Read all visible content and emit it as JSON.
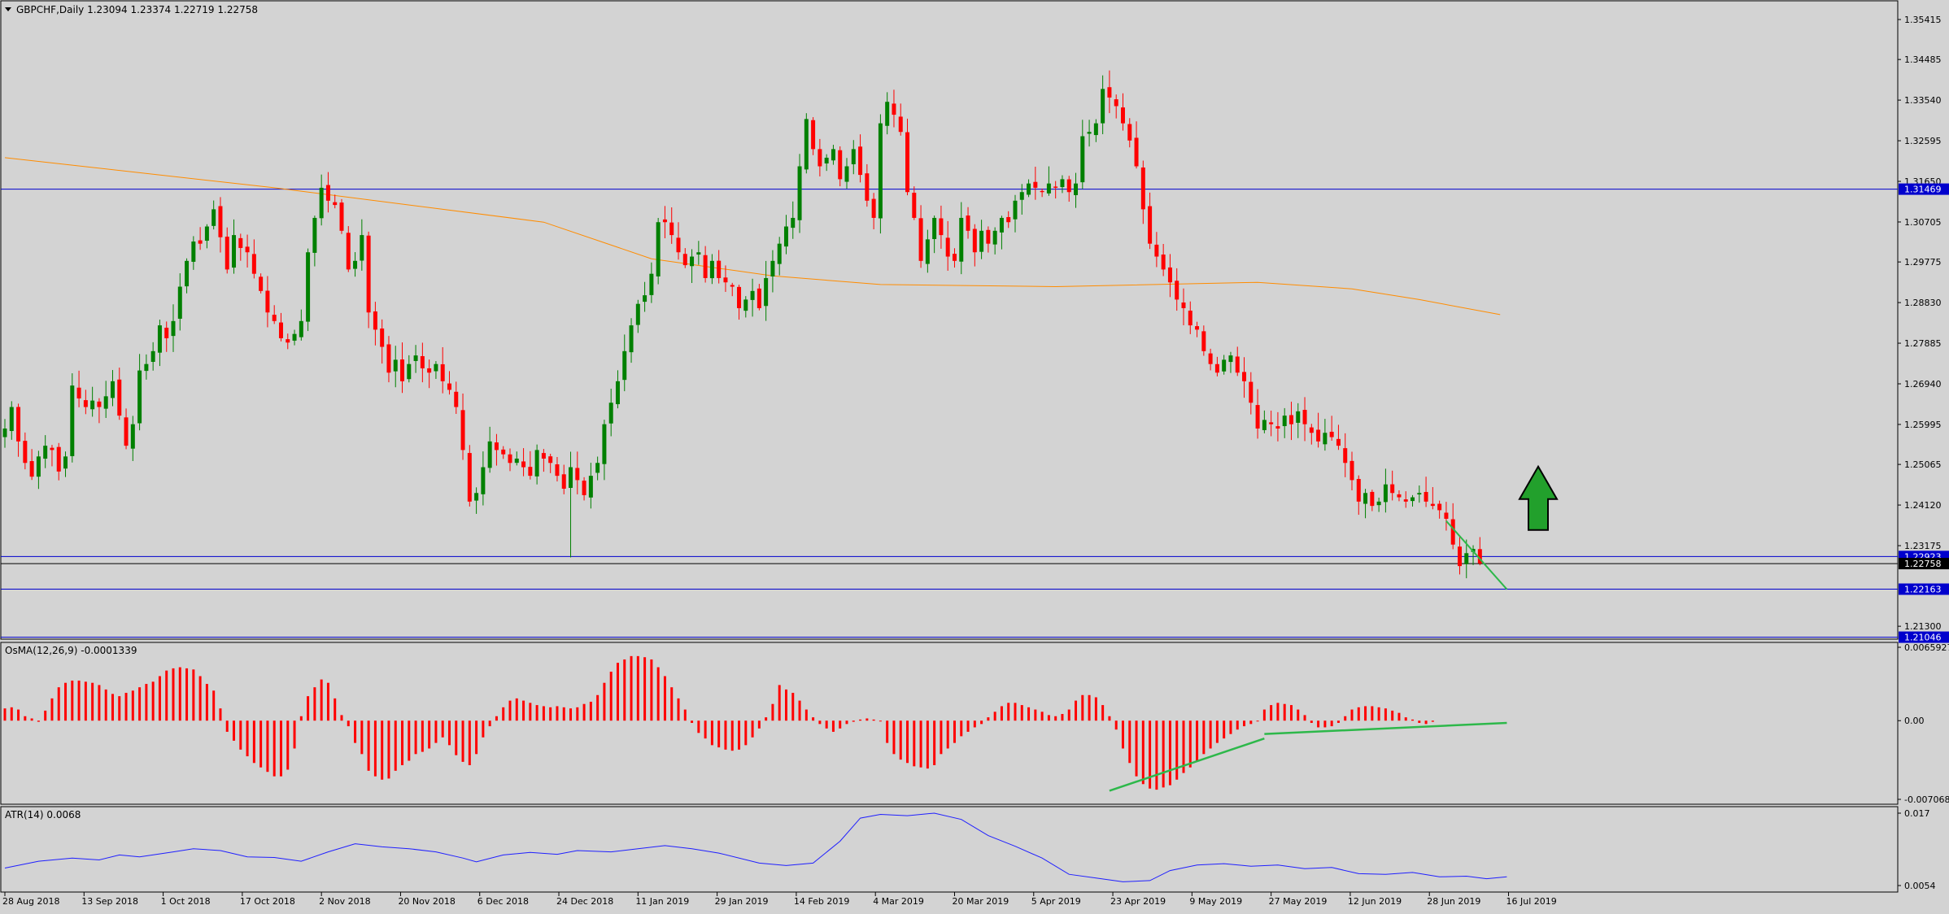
{
  "header": {
    "symbol_line": "GBPCHF,Daily  1.23094 1.23374 1.22719 1.22758",
    "osma_label": "OsMA(12,26,9) -0.0001339",
    "atr_label": "ATR(14) 0.0068"
  },
  "colors": {
    "background": "#d3d3d3",
    "grid_frame": "#000000",
    "bull_candle": "#008000",
    "bear_candle": "#ff0000",
    "ma_line": "#ff8c00",
    "hline": "#0000cd",
    "price_label_bg": "#0000cd",
    "current_price_line": "#000000",
    "trendline": "#2db84a",
    "osma_bars": "#ff0000",
    "atr_line": "#1f1fff",
    "arrow_fill": "#22a02c"
  },
  "chart_data": [
    {
      "type": "candlestick",
      "title": "GBPCHF,Daily",
      "ohlc_last": {
        "open": 1.23094,
        "high": 1.23374,
        "low": 1.22719,
        "close": 1.22758
      },
      "y_ticks": [
        "1.35415",
        "1.34485",
        "1.33540",
        "1.32595",
        "1.31650",
        "1.30705",
        "1.29775",
        "1.28830",
        "1.27885",
        "1.26940",
        "1.25995",
        "1.25065",
        "1.24120",
        "1.23175",
        "1.21300"
      ],
      "ylim": [
        1.21,
        1.3585
      ],
      "price_labels": [
        {
          "value": 1.31469,
          "text": "1.31469",
          "style": "hline"
        },
        {
          "value": 1.22923,
          "text": "1.22923",
          "style": "hline"
        },
        {
          "value": 1.22758,
          "text": "1.22758",
          "style": "current"
        },
        {
          "value": 1.22163,
          "text": "1.22163",
          "style": "hline"
        },
        {
          "value": 1.21046,
          "text": "1.21046",
          "style": "hline"
        }
      ],
      "x_labels": [
        "28 Aug 2018",
        "13 Sep 2018",
        "1 Oct 2018",
        "17 Oct 2018",
        "2 Nov 2018",
        "20 Nov 2018",
        "6 Dec 2018",
        "24 Dec 2018",
        "11 Jan 2019",
        "29 Jan 2019",
        "14 Feb 2019",
        "4 Mar 2019",
        "20 Mar 2019",
        "5 Apr 2019",
        "23 Apr 2019",
        "9 May 2019",
        "27 May 2019",
        "12 Jun 2019",
        "28 Jun 2019",
        "16 Jul 2019"
      ],
      "closes": [
        1.259,
        1.264,
        1.256,
        1.251,
        1.2478,
        1.2525,
        1.255,
        1.254,
        1.249,
        1.2525,
        1.269,
        1.266,
        1.264,
        1.2655,
        1.264,
        1.2665,
        1.27,
        1.262,
        1.255,
        1.26,
        1.2725,
        1.274,
        1.277,
        1.283,
        1.28,
        1.284,
        1.292,
        1.298,
        1.3025,
        1.302,
        1.306,
        1.31,
        1.3035,
        1.296,
        1.304,
        1.301,
        1.3,
        1.295,
        1.291,
        1.286,
        1.284,
        1.28,
        1.279,
        1.281,
        1.284,
        1.3,
        1.308,
        1.315,
        1.312,
        1.311,
        1.305,
        1.296,
        1.298,
        1.304,
        1.286,
        1.282,
        1.278,
        1.272,
        1.275,
        1.27,
        1.274,
        1.276,
        1.273,
        1.272,
        1.274,
        1.27,
        1.268,
        1.264,
        1.254,
        1.242,
        1.244,
        1.25,
        1.256,
        1.254,
        1.253,
        1.251,
        1.252,
        1.25,
        1.248,
        1.254,
        1.252,
        1.251,
        1.248,
        1.245,
        1.25,
        1.247,
        1.2435,
        1.248,
        1.251,
        1.26,
        1.265,
        1.27,
        1.277,
        1.283,
        1.288,
        1.29,
        1.295,
        1.307,
        1.307,
        1.304,
        1.3,
        1.297,
        1.299,
        1.3,
        1.294,
        1.298,
        1.294,
        1.293,
        1.292,
        1.287,
        1.289,
        1.291,
        1.287,
        1.294,
        1.298,
        1.302,
        1.306,
        1.308,
        1.32,
        1.331,
        1.324,
        1.32,
        1.322,
        1.324,
        1.317,
        1.32,
        1.324,
        1.318,
        1.312,
        1.308,
        1.33,
        1.335,
        1.332,
        1.328,
        1.314,
        1.308,
        1.298,
        1.303,
        1.308,
        1.304,
        1.299,
        1.298,
        1.308,
        1.305,
        1.3,
        1.305,
        1.302,
        1.305,
        1.308,
        1.307,
        1.312,
        1.314,
        1.316,
        1.315,
        1.314,
        1.316,
        1.315,
        1.317,
        1.314,
        1.316,
        1.327,
        1.328,
        1.33,
        1.338,
        1.336,
        1.334,
        1.33,
        1.326,
        1.32,
        1.31,
        1.302,
        1.299,
        1.296,
        1.293,
        1.289,
        1.287,
        1.283,
        1.282,
        1.277,
        1.274,
        1.272,
        1.275,
        1.276,
        1.272,
        1.27,
        1.265,
        1.259,
        1.261,
        1.26,
        1.259,
        1.262,
        1.26,
        1.263,
        1.26,
        1.258,
        1.256,
        1.258,
        1.257,
        1.255,
        1.251,
        1.247,
        1.242,
        1.244,
        1.241,
        1.242,
        1.246,
        1.244,
        1.243,
        1.242,
        1.243,
        1.244,
        1.242,
        1.241,
        1.24,
        1.238,
        1.232,
        1.227,
        1.23,
        1.231,
        1.2276
      ],
      "ma_line": [
        [
          0,
          1.322
        ],
        [
          40,
          1.315
        ],
        [
          80,
          1.307
        ],
        [
          96,
          1.2985
        ],
        [
          114,
          1.2945
        ],
        [
          130,
          1.2925
        ],
        [
          156,
          1.292
        ],
        [
          186,
          1.293
        ],
        [
          200,
          1.2915
        ],
        [
          210,
          1.289
        ],
        [
          222,
          1.2855
        ]
      ],
      "horizontal_lines": [
        1.31469,
        1.22923,
        1.22163,
        1.21046
      ],
      "trendline": {
        "from": [
          214,
          1.2375
        ],
        "to": [
          223,
          1.2216
        ]
      },
      "up_arrow": {
        "x": 225,
        "value": 1.2354
      }
    },
    {
      "type": "bar",
      "title": "OsMA(12,26,9)",
      "current": -0.0001339,
      "y_ticks": [
        "0.0065927",
        "0.00",
        "-0.0070686"
      ],
      "ylim": [
        -0.0070686,
        0.0065927
      ],
      "values": [
        0.0011,
        0.0012,
        0.001,
        0.0004,
        0.0002,
        -0.0001,
        0.0009,
        0.002,
        0.003,
        0.0034,
        0.0036,
        0.0036,
        0.0035,
        0.0034,
        0.0032,
        0.0028,
        0.0024,
        0.0022,
        0.0025,
        0.0027,
        0.003,
        0.0033,
        0.0035,
        0.004,
        0.0045,
        0.0047,
        0.0048,
        0.0047,
        0.0046,
        0.004,
        0.0033,
        0.0027,
        0.0011,
        -0.001,
        -0.0018,
        -0.0026,
        -0.0032,
        -0.0038,
        -0.0042,
        -0.0046,
        -0.005,
        -0.005,
        -0.0044,
        -0.0025,
        0.0004,
        0.0022,
        0.003,
        0.0037,
        0.0034,
        0.002,
        0.0005,
        -0.0005,
        -0.002,
        -0.003,
        -0.0045,
        -0.005,
        -0.0053,
        -0.0052,
        -0.0045,
        -0.004,
        -0.0036,
        -0.003,
        -0.0028,
        -0.0025,
        -0.002,
        -0.0015,
        -0.0022,
        -0.0031,
        -0.0037,
        -0.004,
        -0.003,
        -0.0015,
        -0.0005,
        0.0004,
        0.0012,
        0.0018,
        0.002,
        0.0018,
        0.0016,
        0.0014,
        0.0013,
        0.0012,
        0.0013,
        0.0012,
        0.0011,
        0.0012,
        0.0015,
        0.0017,
        0.0023,
        0.0034,
        0.0044,
        0.0052,
        0.0055,
        0.0058,
        0.0058,
        0.0057,
        0.0055,
        0.0048,
        0.004,
        0.003,
        0.002,
        0.001,
        -0.0002,
        -0.0011,
        -0.0016,
        -0.0022,
        -0.0024,
        -0.0026,
        -0.0027,
        -0.0026,
        -0.0022,
        -0.0015,
        -0.0007,
        0.0003,
        0.0015,
        0.0032,
        0.0028,
        0.0025,
        0.0018,
        0.001,
        0.0003,
        -0.0003,
        -0.0007,
        -0.001,
        -0.0007,
        -0.0003,
        -0.0001,
        0.0001,
        0.0002,
        0.0001,
        0.0,
        -0.002,
        -0.003,
        -0.0035,
        -0.0038,
        -0.0041,
        -0.0042,
        -0.0043,
        -0.004,
        -0.003,
        -0.0025,
        -0.002,
        -0.0014,
        -0.001,
        -0.0006,
        -0.0003,
        0.0003,
        0.0008,
        0.0013,
        0.0016,
        0.0016,
        0.0014,
        0.0012,
        0.001,
        0.0008,
        0.0005,
        0.0004,
        0.0006,
        0.001,
        0.0018,
        0.0023,
        0.0023,
        0.0021,
        0.0014,
        0.0004,
        -0.0008,
        -0.0025,
        -0.0038,
        -0.005,
        -0.0057,
        -0.0061,
        -0.0062,
        -0.006,
        -0.0058,
        -0.0053,
        -0.0047,
        -0.0042,
        -0.0036,
        -0.003,
        -0.0025,
        -0.002,
        -0.0016,
        -0.0012,
        -0.0008,
        -0.0005,
        -0.0003,
        0.0,
        0.001,
        0.0014,
        0.0016,
        0.0015,
        0.0014,
        0.001,
        0.0005,
        -0.0002,
        -0.0006,
        -0.0006,
        -0.0005,
        -0.0002,
        0.0004,
        0.001,
        0.0012,
        0.0013,
        0.0013,
        0.0012,
        0.0011,
        0.0009,
        0.0007,
        0.0003,
        0.0001,
        -0.0002,
        -0.0003,
        -0.0001
      ],
      "trendlines": [
        {
          "from": [
            164,
            -0.0063
          ],
          "to": [
            187,
            -0.0016
          ]
        },
        {
          "from": [
            187,
            -0.0012
          ],
          "to": [
            223,
            -0.0002
          ]
        }
      ]
    },
    {
      "type": "line",
      "title": "ATR(14)",
      "current": 0.0068,
      "y_ticks": [
        "0.017",
        "0.0054"
      ],
      "ylim": [
        0.0054,
        0.017
      ],
      "values": [
        [
          0,
          0.0082
        ],
        [
          5,
          0.0093
        ],
        [
          10,
          0.0098
        ],
        [
          14,
          0.0095
        ],
        [
          17,
          0.0103
        ],
        [
          20,
          0.01
        ],
        [
          25,
          0.0108
        ],
        [
          28,
          0.0113
        ],
        [
          32,
          0.011
        ],
        [
          36,
          0.01
        ],
        [
          40,
          0.0099
        ],
        [
          44,
          0.0093
        ],
        [
          48,
          0.0108
        ],
        [
          52,
          0.0121
        ],
        [
          56,
          0.0116
        ],
        [
          60,
          0.0113
        ],
        [
          64,
          0.0108
        ],
        [
          68,
          0.0098
        ],
        [
          70,
          0.0092
        ],
        [
          74,
          0.0103
        ],
        [
          78,
          0.0107
        ],
        [
          82,
          0.0104
        ],
        [
          85,
          0.011
        ],
        [
          90,
          0.0108
        ],
        [
          94,
          0.0113
        ],
        [
          98,
          0.0118
        ],
        [
          102,
          0.0113
        ],
        [
          106,
          0.0106
        ],
        [
          112,
          0.009
        ],
        [
          116,
          0.0086
        ],
        [
          120,
          0.009
        ],
        [
          124,
          0.0125
        ],
        [
          127,
          0.0162
        ],
        [
          130,
          0.0168
        ],
        [
          134,
          0.0166
        ],
        [
          138,
          0.017
        ],
        [
          142,
          0.016
        ],
        [
          146,
          0.0134
        ],
        [
          150,
          0.0117
        ],
        [
          154,
          0.0098
        ],
        [
          158,
          0.0072
        ],
        [
          162,
          0.0066
        ],
        [
          166,
          0.006
        ],
        [
          170,
          0.0062
        ],
        [
          173,
          0.0078
        ],
        [
          177,
          0.0087
        ],
        [
          181,
          0.0089
        ],
        [
          185,
          0.0085
        ],
        [
          189,
          0.0087
        ],
        [
          193,
          0.0081
        ],
        [
          197,
          0.0083
        ],
        [
          201,
          0.0073
        ],
        [
          205,
          0.0072
        ],
        [
          209,
          0.0075
        ],
        [
          213,
          0.0068
        ],
        [
          217,
          0.0069
        ],
        [
          220,
          0.0065
        ],
        [
          223,
          0.0068
        ]
      ]
    }
  ]
}
